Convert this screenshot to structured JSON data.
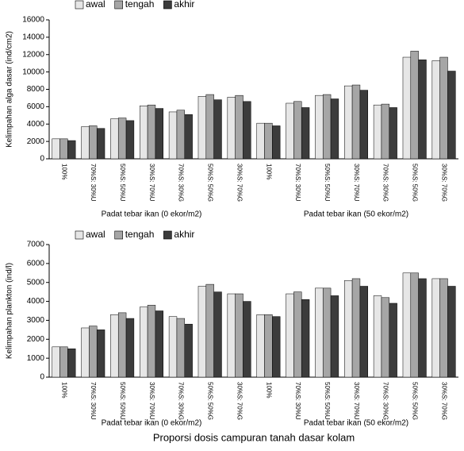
{
  "chart_data": [
    {
      "type": "bar",
      "y_label": "Kelimpahan alga dasar (ind/cm2)",
      "categories": [
        "100%",
        "70%S: 30%U",
        "50%S: 50%U",
        "30%S: 70%U",
        "70%S: 30%G",
        "50%S: 50%G",
        "30%S: 70%G",
        "100%",
        "70%S: 30%U",
        "50%S: 50%U",
        "30%S: 70%U",
        "70%S: 30%G",
        "50%S: 50%G",
        "30%S: 70%G"
      ],
      "groups": [
        "Padat tebar ikan (0 ekor/m2)",
        "Padat tebar ikan (50 ekor/m2)"
      ],
      "series": [
        {
          "name": "awal",
          "color": "#e6e6e6",
          "values": [
            2300,
            3700,
            4600,
            6100,
            5400,
            7200,
            7100,
            4100,
            6400,
            7300,
            8400,
            6200,
            11700,
            11300
          ]
        },
        {
          "name": "tengah",
          "color": "#a6a6a6",
          "values": [
            2300,
            3800,
            4700,
            6200,
            5600,
            7400,
            7300,
            4100,
            6600,
            7400,
            8500,
            6300,
            12400,
            11700
          ]
        },
        {
          "name": "akhir",
          "color": "#3c3c3c",
          "values": [
            2100,
            3500,
            4400,
            5800,
            5100,
            6800,
            6600,
            3800,
            5900,
            6900,
            7900,
            5900,
            11400,
            10100
          ]
        }
      ],
      "ylim": [
        0,
        16000
      ],
      "yticks": [
        0,
        2000,
        4000,
        6000,
        8000,
        10000,
        12000,
        14000,
        16000
      ]
    },
    {
      "type": "bar",
      "y_label": "Kelimpahan plankton (ind/l)",
      "x_label": "Proporsi dosis campuran tanah dasar kolam",
      "categories": [
        "100%",
        "70%S: 30%U",
        "50%S: 50%U",
        "30%S: 70%U",
        "70%S: 30%G",
        "50%S: 50%G",
        "30%S: 70%G",
        "100%",
        "70%S: 30%U",
        "50%S: 50%U",
        "30%S: 70%U",
        "70%S: 30%G",
        "50%S: 50%G",
        "30%S: 70%G"
      ],
      "groups": [
        "Padat tebar ikan (0 ekor/m2)",
        "Padat tebar ikan (50 ekor/m2)"
      ],
      "series": [
        {
          "name": "awal",
          "color": "#e6e6e6",
          "values": [
            1600,
            2600,
            3300,
            3700,
            3200,
            4800,
            4400,
            3300,
            4400,
            4700,
            5100,
            4300,
            5500,
            5200
          ]
        },
        {
          "name": "tengah",
          "color": "#a6a6a6",
          "values": [
            1600,
            2700,
            3400,
            3800,
            3100,
            4900,
            4400,
            3300,
            4500,
            4700,
            5200,
            4200,
            5500,
            5200
          ]
        },
        {
          "name": "akhir",
          "color": "#3c3c3c",
          "values": [
            1500,
            2500,
            3100,
            3500,
            2800,
            4500,
            4000,
            3200,
            4100,
            4300,
            4800,
            3900,
            5200,
            4800
          ]
        }
      ],
      "ylim": [
        0,
        7000
      ],
      "yticks": [
        0,
        1000,
        2000,
        3000,
        4000,
        5000,
        6000,
        7000
      ]
    }
  ]
}
